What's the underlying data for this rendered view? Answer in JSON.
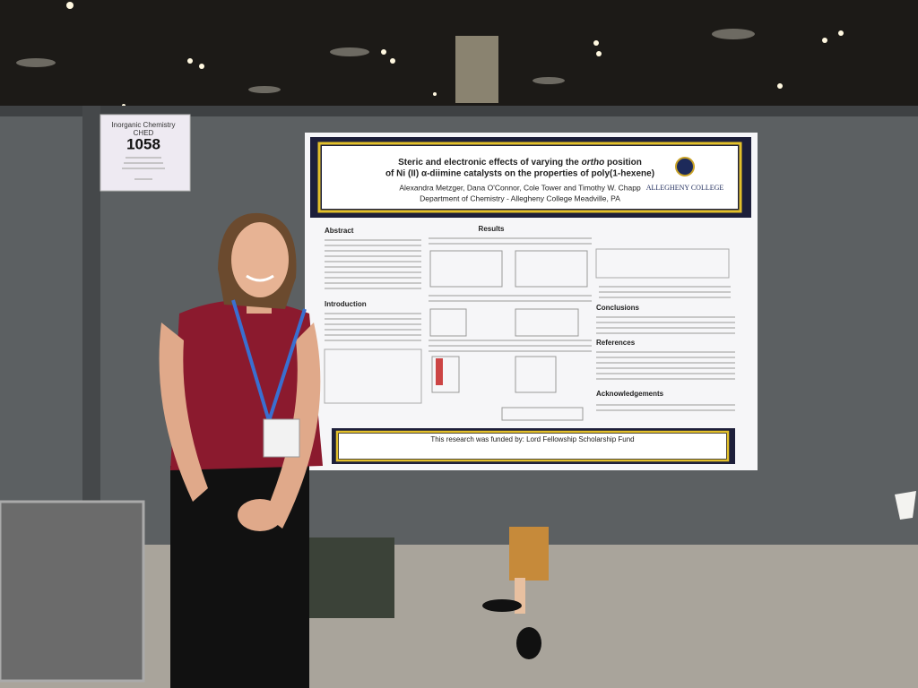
{
  "sign": {
    "line1": "Inorganic Chemistry",
    "line2": "CHED",
    "number": "1058"
  },
  "poster": {
    "title": {
      "pre": "Steric and electronic effects of varying the",
      "em": "ortho",
      "post": "position",
      "line2": "of Ni (II) α-diimine catalysts on the properties of poly(1-hexene)"
    },
    "authors": "Alexandra Metzger, Dana O'Connor, Cole Tower and Timothy W. Chapp",
    "affiliation": "Department of Chemistry - Allegheny College Meadville, PA",
    "logo": "ALLEGHENY COLLEGE",
    "sections": {
      "abstract": "Abstract",
      "introduction": "Introduction",
      "results": "Results",
      "conclusions": "Conclusions",
      "references": "References",
      "acknowledgements": "Acknowledgements"
    },
    "funding": "This research was funded by: Lord Fellowship Scholarship Fund"
  }
}
